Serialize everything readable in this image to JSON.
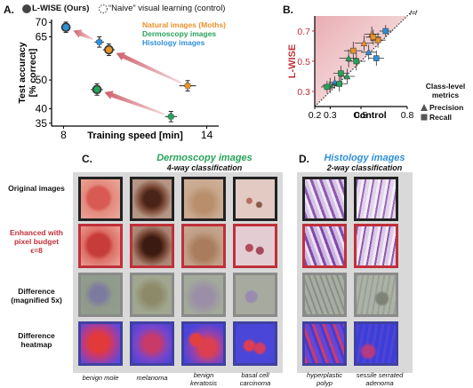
{
  "panels": {
    "a": "A.",
    "b": "B.",
    "c": "C.",
    "d": "D."
  },
  "legend_a": {
    "lwise_label": "L-WISE (Ours)",
    "naive_label": "“Naive” visual learning (control)",
    "natural_label": "Natural images (Moths)",
    "derm_label": "Dermoscopy images",
    "histo_label": "Histology images"
  },
  "legend_b": {
    "title_line1": "Class-level",
    "title_line2": "metrics",
    "precision": "Precision",
    "recall": "Recall",
    "identity": "f=f"
  },
  "colors": {
    "natural": "#e8922a",
    "dermoscopy": "#27a35a",
    "histology": "#2f8fd8",
    "arrow": "#c9505c",
    "lwise_axis": "#c0303a",
    "tile_border_red": "#c0303a"
  },
  "chart_data": [
    {
      "type": "scatter",
      "panel": "A",
      "xlabel": "Training speed [min]",
      "ylabel": "Test accuracy [% correct]",
      "xlim": [
        7.5,
        14.5
      ],
      "ylim": [
        34,
        71
      ],
      "xticks": [
        8,
        14
      ],
      "yticks": [
        35,
        40,
        50,
        65,
        70
      ],
      "series": [
        {
          "name": "Natural images (Moths)",
          "lwise": {
            "x": 9.9,
            "y": 60.5,
            "err_x": 0.25,
            "err_y": 2.0
          },
          "naive": {
            "x": 13.2,
            "y": 48.0,
            "err_x": 0.35,
            "err_y": 1.8
          }
        },
        {
          "name": "Dermoscopy images",
          "lwise": {
            "x": 9.4,
            "y": 46.7,
            "err_x": 0.25,
            "err_y": 2.0
          },
          "naive": {
            "x": 12.5,
            "y": 37.3,
            "err_x": 0.25,
            "err_y": 1.8
          }
        },
        {
          "name": "Histology images",
          "lwise": {
            "x": 8.1,
            "y": 68.3,
            "err_x": 0.2,
            "err_y": 1.8
          },
          "naive": {
            "x": 9.5,
            "y": 63.2,
            "err_x": 0.2,
            "err_y": 1.8
          }
        }
      ]
    },
    {
      "type": "scatter",
      "panel": "B",
      "xlabel": "Control",
      "ylabel": "L-WISE",
      "xlim": [
        0.2,
        0.8
      ],
      "ylim": [
        0.2,
        0.8
      ],
      "xticks": [
        0.2,
        0.3,
        0.5,
        0.8
      ],
      "yticks": [
        0.3,
        0.5,
        0.7
      ],
      "points": [
        {
          "group": "natural",
          "metric": "precision",
          "x": 0.57,
          "y": 0.68,
          "ex": 0.05,
          "ey": 0.05
        },
        {
          "group": "natural",
          "metric": "recall",
          "x": 0.61,
          "y": 0.64,
          "ex": 0.05,
          "ey": 0.05
        },
        {
          "group": "natural",
          "metric": "precision",
          "x": 0.52,
          "y": 0.62,
          "ex": 0.06,
          "ey": 0.05
        },
        {
          "group": "natural",
          "metric": "recall",
          "x": 0.58,
          "y": 0.66,
          "ex": 0.05,
          "ey": 0.05
        },
        {
          "group": "natural",
          "metric": "recall",
          "x": 0.45,
          "y": 0.57,
          "ex": 0.06,
          "ey": 0.06
        },
        {
          "group": "histology",
          "metric": "recall",
          "x": 0.66,
          "y": 0.7,
          "ex": 0.04,
          "ey": 0.04
        },
        {
          "group": "histology",
          "metric": "precision",
          "x": 0.55,
          "y": 0.56,
          "ex": 0.05,
          "ey": 0.05
        },
        {
          "group": "histology",
          "metric": "recall",
          "x": 0.6,
          "y": 0.52,
          "ex": 0.05,
          "ey": 0.05
        },
        {
          "group": "histology",
          "metric": "precision",
          "x": 0.33,
          "y": 0.36,
          "ex": 0.04,
          "ey": 0.04
        },
        {
          "group": "dermoscopy",
          "metric": "precision",
          "x": 0.42,
          "y": 0.52,
          "ex": 0.06,
          "ey": 0.06
        },
        {
          "group": "dermoscopy",
          "metric": "recall",
          "x": 0.47,
          "y": 0.5,
          "ex": 0.06,
          "ey": 0.06
        },
        {
          "group": "dermoscopy",
          "metric": "recall",
          "x": 0.37,
          "y": 0.42,
          "ex": 0.05,
          "ey": 0.05
        },
        {
          "group": "dermoscopy",
          "metric": "precision",
          "x": 0.3,
          "y": 0.34,
          "ex": 0.05,
          "ey": 0.05
        },
        {
          "group": "dermoscopy",
          "metric": "recall",
          "x": 0.28,
          "y": 0.33,
          "ex": 0.04,
          "ey": 0.04
        },
        {
          "group": "dermoscopy",
          "metric": "recall",
          "x": 0.36,
          "y": 0.35,
          "ex": 0.05,
          "ey": 0.05
        },
        {
          "group": "dermoscopy",
          "metric": "precision",
          "x": 0.41,
          "y": 0.4,
          "ex": 0.05,
          "ey": 0.05
        }
      ]
    }
  ],
  "panel_c": {
    "title": "Dermoscopy images",
    "subtitle": "4-way classification",
    "captions": [
      "benign mole",
      "melanoma",
      "benign keratosis",
      "basal cell carcinoma"
    ]
  },
  "panel_d": {
    "title": "Histology images",
    "subtitle": "2-way classification",
    "captions": [
      "hyperplastic polyp",
      "sessile serrated adenoma"
    ]
  },
  "rows": {
    "original": "Original images",
    "enhanced_l1": "Enhanced with",
    "enhanced_l2": "pixel budget",
    "enhanced_l3": "ϵ=8",
    "difference_l1": "Difference",
    "difference_l2": "(magnified 5x)",
    "heatmap_l1": "Difference",
    "heatmap_l2": "heatmap"
  }
}
